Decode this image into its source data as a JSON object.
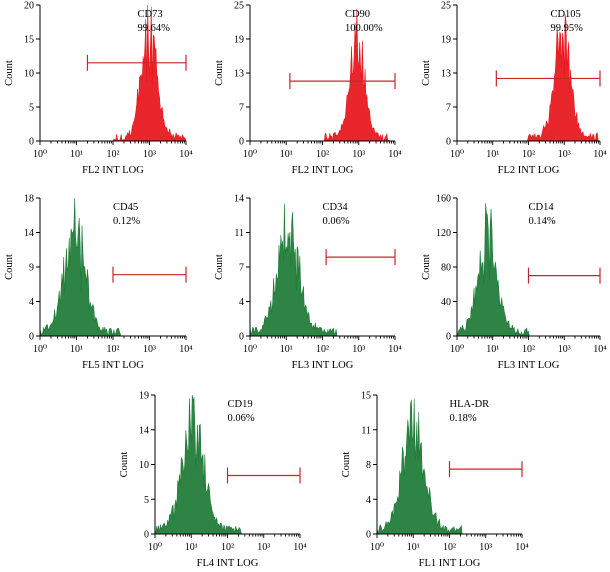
{
  "colors": {
    "red": "#e8141b",
    "green": "#1c7a35",
    "gate": "#c8262a",
    "axis": "#000000"
  },
  "chart_data": [
    {
      "type": "histogram",
      "marker": "CD73",
      "percent": "99.64%",
      "xlabel": "FL2 INT LOG",
      "ylabel": "Count",
      "yticks": [
        "0",
        "5",
        "10",
        "15",
        "20"
      ],
      "ylim": [
        0,
        20
      ],
      "xlim": [
        0,
        4
      ],
      "xticks": [
        "10⁰",
        "10¹",
        "10²",
        "10³",
        "10⁴"
      ],
      "color": "red",
      "peak_log": 3.0,
      "peak_count": 20,
      "spread": 0.22,
      "gate_from_log": 1.3,
      "gate_to_log": 4.0,
      "gate_at_count": 11.5
    },
    {
      "type": "histogram",
      "marker": "CD90",
      "percent": "100.00%",
      "xlabel": "FL2 INT LOG",
      "ylabel": "Count",
      "yticks": [
        "0",
        "7",
        "13",
        "19",
        "25"
      ],
      "ylim": [
        0,
        25
      ],
      "xlim": [
        0,
        4
      ],
      "xticks": [
        "10⁰",
        "10¹",
        "10²",
        "10³",
        "10⁴"
      ],
      "color": "red",
      "peak_log": 2.95,
      "peak_count": 24,
      "spread": 0.2,
      "gate_from_log": 1.1,
      "gate_to_log": 4.0,
      "gate_at_count": 11
    },
    {
      "type": "histogram",
      "marker": "CD105",
      "percent": "99.95%",
      "xlabel": "FL2 INT LOG",
      "ylabel": "Count",
      "yticks": [
        "0",
        "7",
        "13",
        "19",
        "25"
      ],
      "ylim": [
        0,
        25
      ],
      "xlim": [
        0,
        4
      ],
      "xticks": [
        "10⁰",
        "10¹",
        "10²",
        "10³",
        "10⁴"
      ],
      "color": "red",
      "peak_log": 2.95,
      "peak_count": 25,
      "spread": 0.22,
      "gate_from_log": 1.1,
      "gate_to_log": 4.0,
      "gate_at_count": 11.5
    },
    {
      "type": "histogram",
      "marker": "CD45",
      "percent": "0.12%",
      "xlabel": "FL5 INT LOG",
      "ylabel": "Count",
      "yticks": [
        "0",
        "4",
        "9",
        "14",
        "18"
      ],
      "ylim": [
        0,
        18
      ],
      "xlim": [
        0,
        4
      ],
      "xticks": [
        "10⁰",
        "10¹",
        "10²",
        "10³",
        "10⁴"
      ],
      "color": "green",
      "peak_log": 0.95,
      "peak_count": 18,
      "spread": 0.28,
      "gate_from_log": 2.0,
      "gate_to_log": 4.0,
      "gate_at_count": 8
    },
    {
      "type": "histogram",
      "marker": "CD34",
      "percent": "0.06%",
      "xlabel": "FL3 INT LOG",
      "ylabel": "Count",
      "yticks": [
        "0",
        "4",
        "7",
        "11",
        "14"
      ],
      "ylim": [
        0,
        14
      ],
      "xlim": [
        0,
        4
      ],
      "xticks": [
        "10⁰",
        "10¹",
        "10²",
        "10³",
        "10⁴"
      ],
      "color": "green",
      "peak_log": 1.05,
      "peak_count": 14,
      "spread": 0.3,
      "gate_from_log": 2.1,
      "gate_to_log": 4.0,
      "gate_at_count": 8
    },
    {
      "type": "histogram",
      "marker": "CD14",
      "percent": "0.14%",
      "xlabel": "FL3 INT LOG",
      "ylabel": "Count",
      "yticks": [
        "0",
        "40",
        "80",
        "120",
        "160"
      ],
      "ylim": [
        0,
        160
      ],
      "xlim": [
        0,
        4
      ],
      "xticks": [
        "10⁰",
        "10¹",
        "10²",
        "10³",
        "10⁴"
      ],
      "color": "green",
      "peak_log": 0.85,
      "peak_count": 155,
      "spread": 0.26,
      "gate_from_log": 2.0,
      "gate_to_log": 4.0,
      "gate_at_count": 70
    },
    {
      "type": "histogram",
      "marker": "CD19",
      "percent": "0.06%",
      "xlabel": "FL4 INT LOG",
      "ylabel": "Count",
      "yticks": [
        "0",
        "5",
        "10",
        "14",
        "19"
      ],
      "ylim": [
        0,
        19
      ],
      "xlim": [
        0,
        4
      ],
      "xticks": [
        "10⁰",
        "10¹",
        "10²",
        "10³",
        "10⁴"
      ],
      "color": "green",
      "peak_log": 1.05,
      "peak_count": 19,
      "spread": 0.3,
      "gate_from_log": 2.0,
      "gate_to_log": 4.0,
      "gate_at_count": 8
    },
    {
      "type": "histogram",
      "marker": "HLA-DR",
      "percent": "0.18%",
      "xlabel": "FL1 INT LOG",
      "ylabel": "Count",
      "yticks": [
        "0",
        "4",
        "8",
        "11",
        "15"
      ],
      "ylim": [
        0,
        15
      ],
      "xlim": [
        0,
        4
      ],
      "xticks": [
        "10⁰",
        "10¹",
        "10²",
        "10³",
        "10⁴"
      ],
      "color": "green",
      "peak_log": 1.0,
      "peak_count": 15,
      "spread": 0.3,
      "gate_from_log": 2.0,
      "gate_to_log": 4.0,
      "gate_at_count": 7
    }
  ]
}
